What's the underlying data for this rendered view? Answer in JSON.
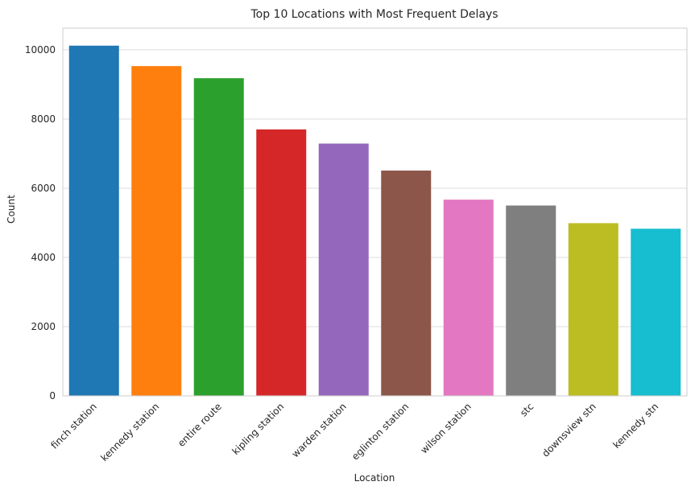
{
  "chart_data": {
    "type": "bar",
    "title": "Top 10 Locations with Most Frequent Delays",
    "xlabel": "Location",
    "ylabel": "Count",
    "categories": [
      "finch station",
      "kennedy station",
      "entire route",
      "kipling station",
      "warden station",
      "eglinton station",
      "wilson station",
      "stc",
      "downsview stn",
      "kennedy stn"
    ],
    "values": [
      10120,
      9530,
      9180,
      7700,
      7290,
      6510,
      5670,
      5500,
      4990,
      4830
    ],
    "colors": [
      "#1f77b4",
      "#ff7f0e",
      "#2ca02c",
      "#d62728",
      "#9467bd",
      "#8c564b",
      "#e377c2",
      "#7f7f7f",
      "#bcbd22",
      "#17becf"
    ],
    "ylim": [
      0,
      10626
    ],
    "yticks": [
      0,
      2000,
      4000,
      6000,
      8000,
      10000
    ],
    "grid": "horizontal",
    "style": "seaborn whitegrid"
  }
}
